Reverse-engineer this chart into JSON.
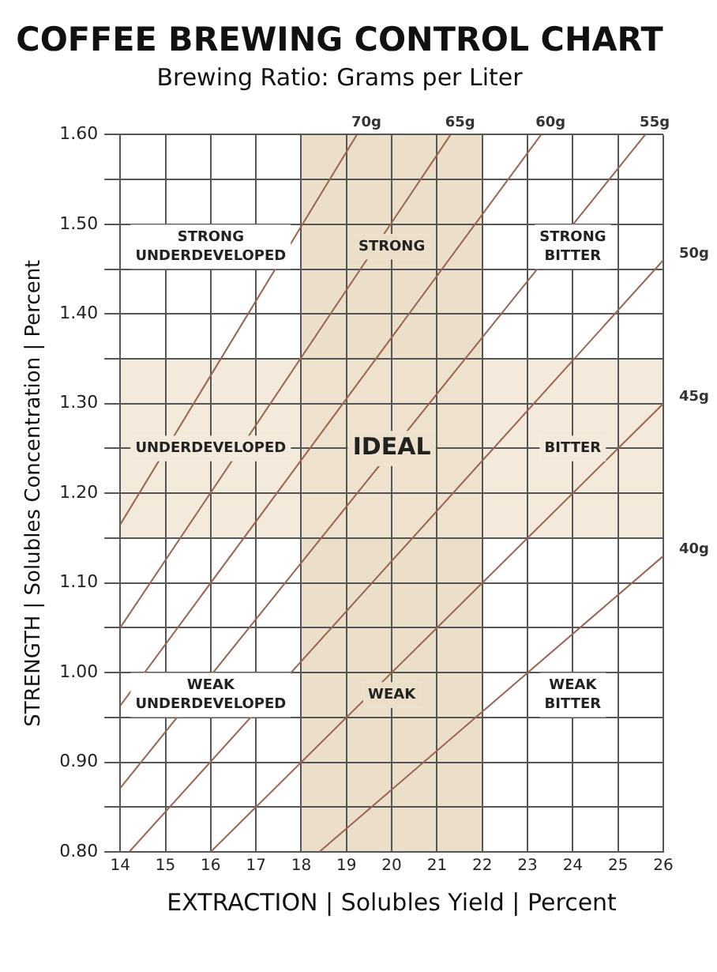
{
  "chart_data": {
    "type": "line",
    "title": "COFFEE BREWING CONTROL CHART",
    "subtitle": "Brewing Ratio: Grams per Liter",
    "xlabel": "EXTRACTION | Solubles Yield | Percent",
    "ylabel": "STRENGTH | Solubles Concentration | Percent",
    "xlim": [
      14,
      26
    ],
    "xticks": [
      14,
      15,
      16,
      17,
      18,
      19,
      20,
      21,
      22,
      23,
      24,
      25,
      26
    ],
    "ylim": [
      0.8,
      1.6
    ],
    "yticks": [
      {
        "value": 0.8,
        "label": "0.80"
      },
      {
        "value": 0.85,
        "label": null
      },
      {
        "value": 0.9,
        "label": "0.90"
      },
      {
        "value": 0.95,
        "label": null
      },
      {
        "value": 1.0,
        "label": "1.00"
      },
      {
        "value": 1.05,
        "label": null
      },
      {
        "value": 1.1,
        "label": "1.10"
      },
      {
        "value": 1.15,
        "label": null
      },
      {
        "value": 1.2,
        "label": "1.20"
      },
      {
        "value": 1.25,
        "label": null
      },
      {
        "value": 1.3,
        "label": "1.30"
      },
      {
        "value": 1.35,
        "label": null
      },
      {
        "value": 1.4,
        "label": "1.40"
      },
      {
        "value": 1.45,
        "label": null
      },
      {
        "value": 1.5,
        "label": "1.50"
      },
      {
        "value": 1.55,
        "label": null
      },
      {
        "value": 1.6,
        "label": "1.60"
      }
    ],
    "series": [
      {
        "name": "70g",
        "color": "#9a6450",
        "x": [
          14,
          19.23
        ],
        "values": [
          1.165,
          1.6
        ]
      },
      {
        "name": "65g",
        "color": "#9a6450",
        "x": [
          14,
          21.3
        ],
        "values": [
          1.05,
          1.6
        ]
      },
      {
        "name": "60g",
        "color": "#9a6450",
        "x": [
          14,
          23.3
        ],
        "values": [
          0.963,
          1.6
        ]
      },
      {
        "name": "55g",
        "color": "#9a6450",
        "x": [
          14,
          25.6
        ],
        "values": [
          0.871,
          1.6
        ]
      },
      {
        "name": "50g",
        "color": "#9a6450",
        "x": [
          14.2,
          26
        ],
        "values": [
          0.8,
          1.46
        ]
      },
      {
        "name": "45g",
        "color": "#9a6450",
        "x": [
          16,
          26
        ],
        "values": [
          0.8,
          1.3
        ]
      },
      {
        "name": "40g",
        "color": "#9a6450",
        "x": [
          18.4,
          26
        ],
        "values": [
          0.8,
          1.13
        ]
      }
    ],
    "bands": [
      {
        "axis": "x",
        "from": 18,
        "to": 22,
        "color": "#e4d4b8"
      },
      {
        "axis": "y",
        "from": 1.15,
        "to": 1.35,
        "color": "#efe3cf"
      }
    ],
    "annotations": [
      "STRONG\nUNDERDEVELOPED",
      "STRONG",
      "STRONG\nBITTER",
      "UNDERDEVELOPED",
      "IDEAL",
      "BITTER",
      "WEAK\nUNDERDEVELOPED",
      "WEAK",
      "WEAK\nBITTER"
    ],
    "grid": true,
    "legend": false
  }
}
